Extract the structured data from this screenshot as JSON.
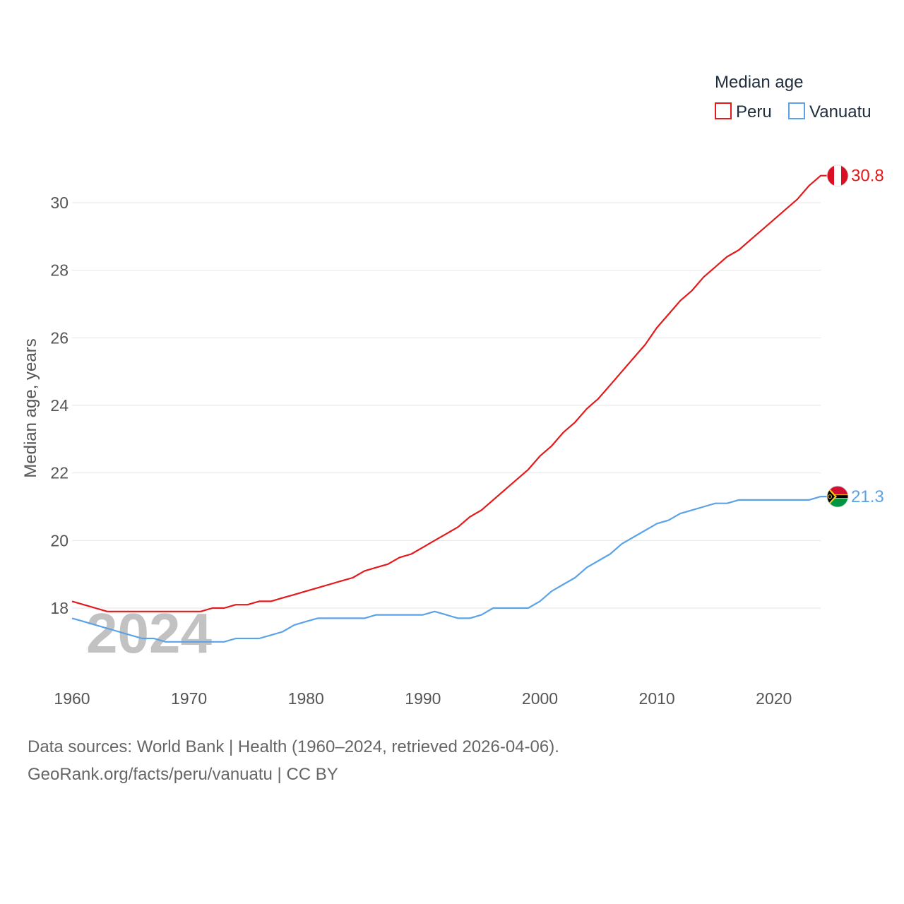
{
  "chart_data": {
    "type": "line",
    "legend_title": "Median age",
    "ylabel": "Median age, years",
    "xlabel": "",
    "xlim": [
      1960,
      2024
    ],
    "ylim": [
      16,
      31
    ],
    "yticks": [
      18,
      20,
      22,
      24,
      26,
      28,
      30
    ],
    "xticks": [
      1960,
      1970,
      1980,
      1990,
      2000,
      2010,
      2020
    ],
    "watermark_year": "2024",
    "series": [
      {
        "name": "Peru",
        "color": "#e31a1c",
        "end_label": "30.8",
        "flag": "peru-flag-icon",
        "x": [
          1960,
          1961,
          1962,
          1963,
          1964,
          1965,
          1966,
          1967,
          1968,
          1969,
          1970,
          1971,
          1972,
          1973,
          1974,
          1975,
          1976,
          1977,
          1978,
          1979,
          1980,
          1981,
          1982,
          1983,
          1984,
          1985,
          1986,
          1987,
          1988,
          1989,
          1990,
          1991,
          1992,
          1993,
          1994,
          1995,
          1996,
          1997,
          1998,
          1999,
          2000,
          2001,
          2002,
          2003,
          2004,
          2005,
          2006,
          2007,
          2008,
          2009,
          2010,
          2011,
          2012,
          2013,
          2014,
          2015,
          2016,
          2017,
          2018,
          2019,
          2020,
          2021,
          2022,
          2023,
          2024
        ],
        "values": [
          18.2,
          18.1,
          18.0,
          17.9,
          17.9,
          17.9,
          17.9,
          17.9,
          17.9,
          17.9,
          17.9,
          17.9,
          18.0,
          18.0,
          18.1,
          18.1,
          18.2,
          18.2,
          18.3,
          18.4,
          18.5,
          18.6,
          18.7,
          18.8,
          18.9,
          19.1,
          19.2,
          19.3,
          19.5,
          19.6,
          19.8,
          20.0,
          20.2,
          20.4,
          20.7,
          20.9,
          21.2,
          21.5,
          21.8,
          22.1,
          22.5,
          22.8,
          23.2,
          23.5,
          23.9,
          24.2,
          24.6,
          25.0,
          25.4,
          25.8,
          26.3,
          26.7,
          27.1,
          27.4,
          27.8,
          28.1,
          28.4,
          28.6,
          28.9,
          29.2,
          29.5,
          29.8,
          30.1,
          30.5,
          30.8
        ]
      },
      {
        "name": "Vanuatu",
        "color": "#5ba3e6",
        "end_label": "21.3",
        "flag": "vanuatu-flag-icon",
        "x": [
          1960,
          1961,
          1962,
          1963,
          1964,
          1965,
          1966,
          1967,
          1968,
          1969,
          1970,
          1971,
          1972,
          1973,
          1974,
          1975,
          1976,
          1977,
          1978,
          1979,
          1980,
          1981,
          1982,
          1983,
          1984,
          1985,
          1986,
          1987,
          1988,
          1989,
          1990,
          1991,
          1992,
          1993,
          1994,
          1995,
          1996,
          1997,
          1998,
          1999,
          2000,
          2001,
          2002,
          2003,
          2004,
          2005,
          2006,
          2007,
          2008,
          2009,
          2010,
          2011,
          2012,
          2013,
          2014,
          2015,
          2016,
          2017,
          2018,
          2019,
          2020,
          2021,
          2022,
          2023,
          2024
        ],
        "values": [
          17.7,
          17.6,
          17.5,
          17.4,
          17.3,
          17.2,
          17.1,
          17.1,
          17.0,
          17.0,
          17.0,
          17.0,
          17.0,
          17.0,
          17.1,
          17.1,
          17.1,
          17.2,
          17.3,
          17.5,
          17.6,
          17.7,
          17.7,
          17.7,
          17.7,
          17.7,
          17.8,
          17.8,
          17.8,
          17.8,
          17.8,
          17.9,
          17.8,
          17.7,
          17.7,
          17.8,
          18.0,
          18.0,
          18.0,
          18.0,
          18.2,
          18.5,
          18.7,
          18.9,
          19.2,
          19.4,
          19.6,
          19.9,
          20.1,
          20.3,
          20.5,
          20.6,
          20.8,
          20.9,
          21.0,
          21.1,
          21.1,
          21.2,
          21.2,
          21.2,
          21.2,
          21.2,
          21.2,
          21.2,
          21.3
        ]
      }
    ]
  },
  "footer": {
    "sources": "Data sources: World Bank | Health (1960–2024, retrieved 2026-04-06).",
    "credit": "GeoRank.org/facts/peru/vanuatu | CC BY"
  }
}
